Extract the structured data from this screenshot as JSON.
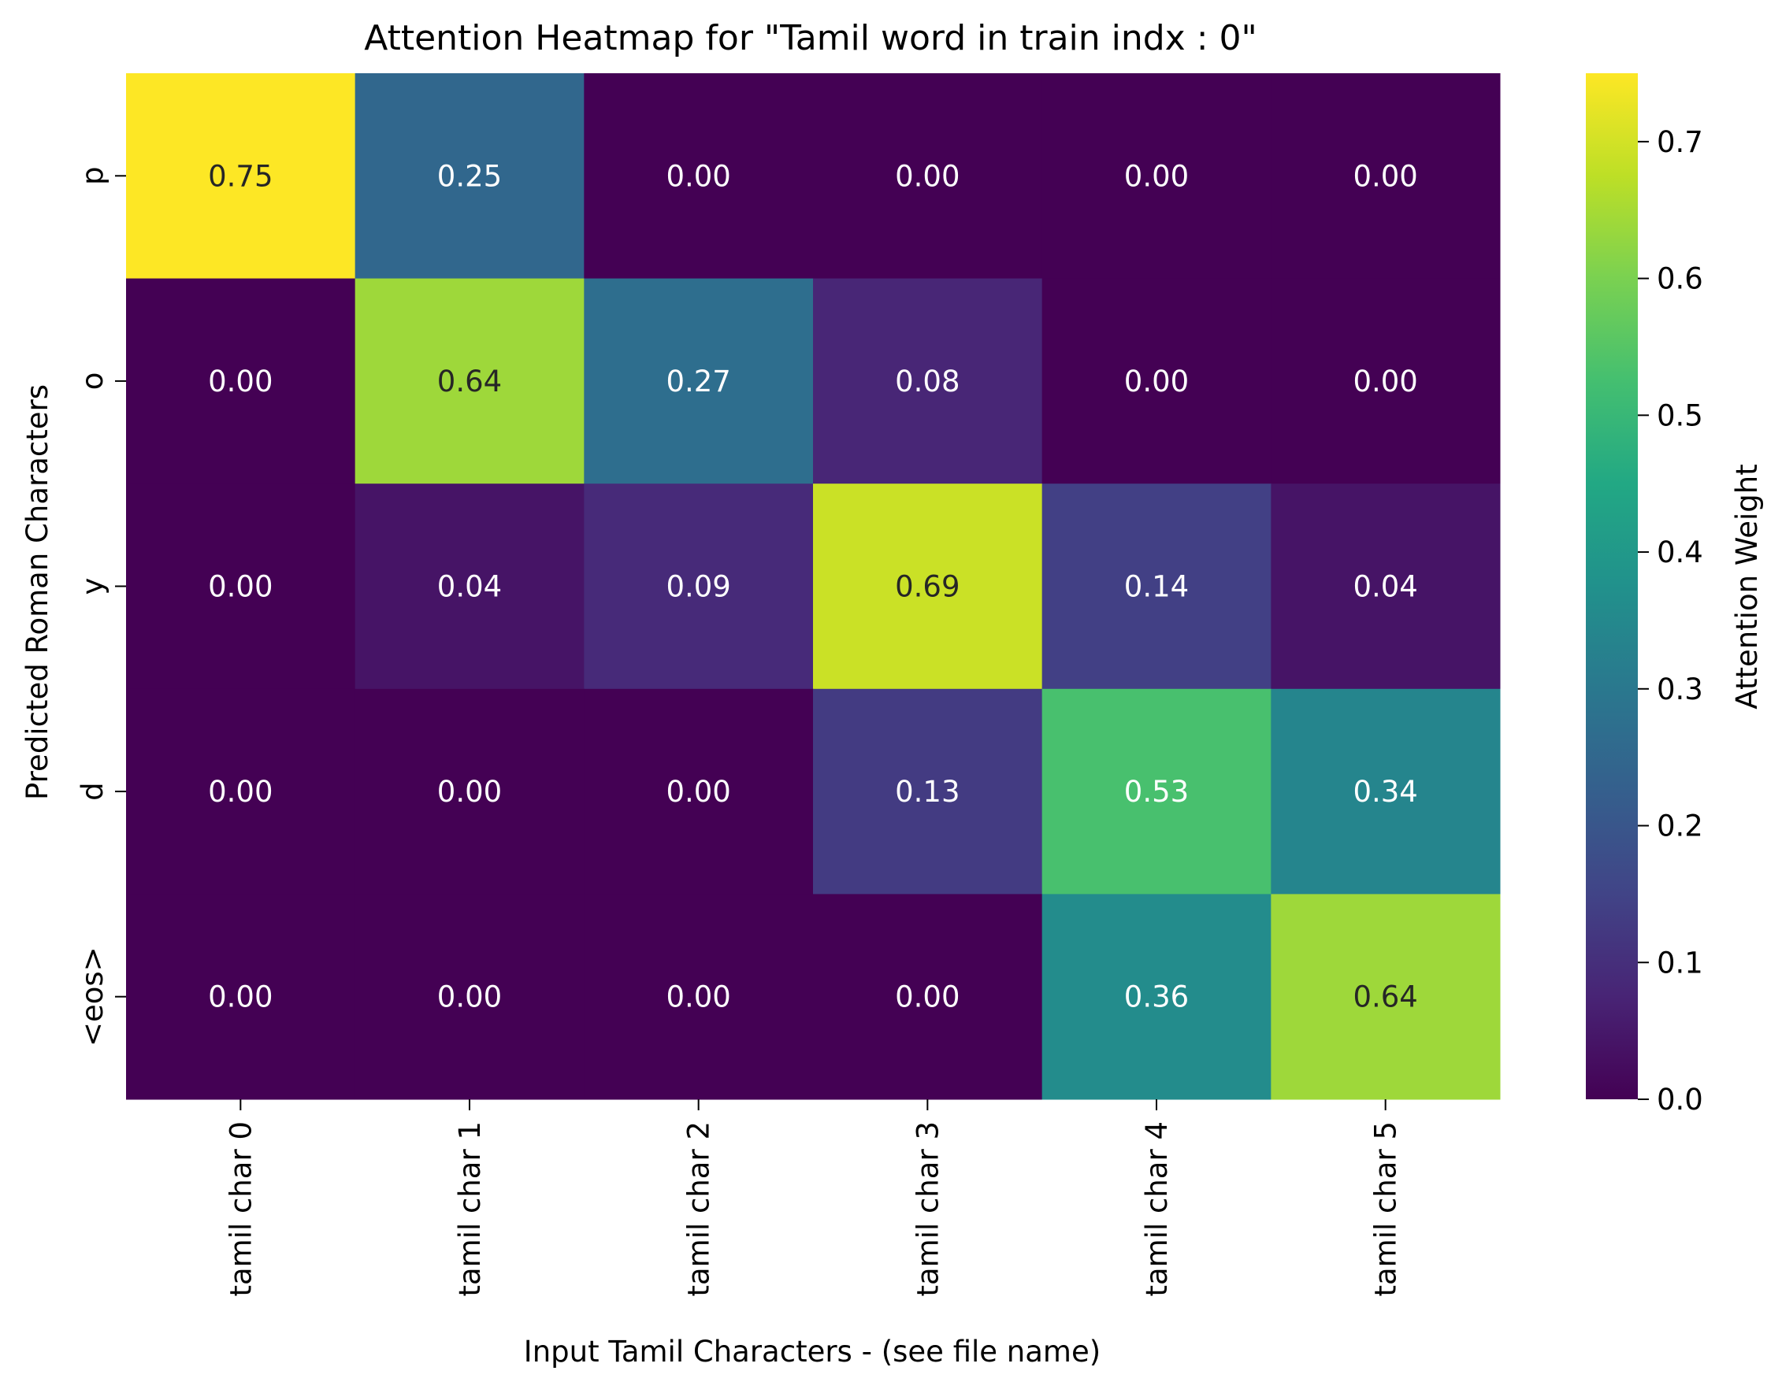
{
  "chart_data": {
    "type": "heatmap",
    "title": "Attention Heatmap for \"Tamil word  in train indx :  0\"",
    "xlabel": "Input Tamil Characters - (see file name)",
    "ylabel": "Predicted Roman Characters",
    "x_categories": [
      "tamil char 0",
      "tamil char 1",
      "tamil char 2",
      "tamil char 3",
      "tamil char 4",
      "tamil char 5"
    ],
    "y_categories": [
      "p",
      "o",
      "y",
      "d",
      "<eos>"
    ],
    "values": [
      [
        0.75,
        0.25,
        0.0,
        0.0,
        0.0,
        0.0
      ],
      [
        0.0,
        0.64,
        0.27,
        0.08,
        0.0,
        0.0
      ],
      [
        0.0,
        0.04,
        0.09,
        0.69,
        0.14,
        0.04
      ],
      [
        0.0,
        0.0,
        0.0,
        0.13,
        0.53,
        0.34
      ],
      [
        0.0,
        0.0,
        0.0,
        0.0,
        0.36,
        0.64
      ]
    ],
    "value_format": "0.00",
    "colormap": "viridis",
    "vmin": 0.0,
    "vmax": 0.75,
    "colorbar": {
      "label": "Attention Weight",
      "ticks": [
        0.0,
        0.1,
        0.2,
        0.3,
        0.4,
        0.5,
        0.6,
        0.7
      ],
      "tick_labels": [
        "0.0",
        "0.1",
        "0.2",
        "0.3",
        "0.4",
        "0.5",
        "0.6",
        "0.7"
      ]
    },
    "grid": false
  }
}
